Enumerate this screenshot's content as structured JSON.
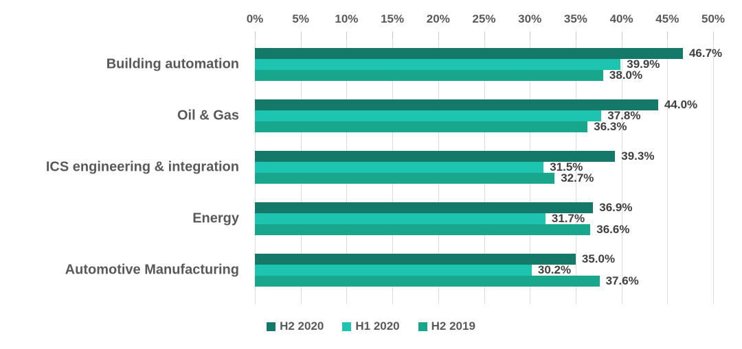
{
  "chart_data": {
    "type": "bar",
    "orientation": "horizontal",
    "title": "",
    "xlabel": "",
    "ylabel": "",
    "xlim": [
      0,
      50
    ],
    "grid": true,
    "axis_position": "top",
    "legend_position": "bottom",
    "x_ticks": [
      {
        "value": 0,
        "label": "0%"
      },
      {
        "value": 5,
        "label": "5%"
      },
      {
        "value": 10,
        "label": "10%"
      },
      {
        "value": 15,
        "label": "15%"
      },
      {
        "value": 20,
        "label": "20%"
      },
      {
        "value": 25,
        "label": "25%"
      },
      {
        "value": 30,
        "label": "30%"
      },
      {
        "value": 35,
        "label": "35%"
      },
      {
        "value": 40,
        "label": "40%"
      },
      {
        "value": 45,
        "label": "45%"
      },
      {
        "value": 50,
        "label": "50%"
      }
    ],
    "categories": [
      "Building automation",
      "Oil & Gas",
      "ICS engineering & integration",
      "Energy",
      "Automotive Manufacturing"
    ],
    "series": [
      {
        "name": "H2 2020",
        "color": "#15796a",
        "values": [
          46.7,
          44.0,
          39.3,
          36.9,
          35.0
        ],
        "labels": [
          "46.7%",
          "44.0%",
          "39.3%",
          "36.9%",
          "35.0%"
        ]
      },
      {
        "name": "H1 2020",
        "color": "#1dc4af",
        "values": [
          39.9,
          37.8,
          31.5,
          31.7,
          30.2
        ],
        "labels": [
          "39.9%",
          "37.8%",
          "31.5%",
          "31.7%",
          "30.2%"
        ]
      },
      {
        "name": "H2 2019",
        "color": "#18a78c",
        "values": [
          38.0,
          36.3,
          32.7,
          36.6,
          37.6
        ],
        "labels": [
          "38.0%",
          "36.3%",
          "32.7%",
          "36.6%",
          "37.6%"
        ]
      }
    ]
  },
  "colors": {
    "background": "#ffffff",
    "gridline": "#dadada",
    "tick_stub": "#c9c9c9",
    "tick_text": "#595959",
    "category_text": "#595959",
    "value_text": "#3f3f3f",
    "legend_text": "#595959"
  }
}
